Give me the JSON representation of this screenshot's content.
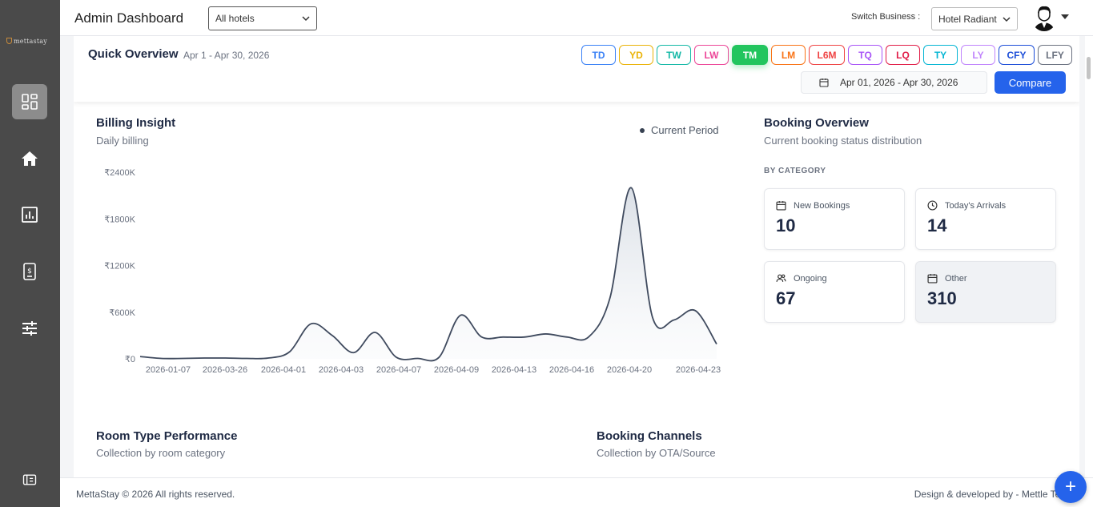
{
  "app": {
    "logo_text": "mettastay"
  },
  "header": {
    "title": "Admin Dashboard",
    "hotel_select_value": "All hotels",
    "switch_label": "Switch Business :",
    "business_value": "Hotel Radiant"
  },
  "overview": {
    "ghost_text": "/ / /                             / / / /",
    "title": "Quick Overview",
    "range": "Apr 1 - Apr 30, 2026",
    "periods": [
      {
        "label": "TD",
        "color": "#3b82f6"
      },
      {
        "label": "YD",
        "color": "#eab308"
      },
      {
        "label": "TW",
        "color": "#14b8a6"
      },
      {
        "label": "LW",
        "color": "#ec4899"
      },
      {
        "label": "TM",
        "color": "#22c55e",
        "active": true
      },
      {
        "label": "LM",
        "color": "#f97316"
      },
      {
        "label": "L6M",
        "color": "#ef4444"
      },
      {
        "label": "TQ",
        "color": "#a855f7"
      },
      {
        "label": "LQ",
        "color": "#e11d48"
      },
      {
        "label": "TY",
        "color": "#06b6d4"
      },
      {
        "label": "LY",
        "color": "#c084fc"
      },
      {
        "label": "CFY",
        "color": "#1d4ed8"
      },
      {
        "label": "LFY",
        "color": "#6b7280"
      }
    ],
    "date_range": "Apr 01, 2026 - Apr 30, 2026",
    "compare_label": "Compare"
  },
  "billing": {
    "title": "Billing Insight",
    "subtitle": "Daily billing",
    "legend": "Current Period"
  },
  "chart_data": {
    "type": "area",
    "title": "Billing Insight",
    "ylim": [
      0,
      2400
    ],
    "y_ticks": [
      "₹0",
      "₹600K",
      "₹1200K",
      "₹1800K",
      "₹2400K"
    ],
    "y_tick_values": [
      0,
      600,
      1200,
      1800,
      2400
    ],
    "x_tick_labels": [
      "2026-01-07",
      "2026-03-26",
      "2026-04-01",
      "2026-04-03",
      "2026-04-07",
      "2026-04-09",
      "2026-04-13",
      "2026-04-16",
      "2026-04-20",
      "2026-04-23"
    ],
    "series": [
      {
        "name": "Current Period",
        "color": "#3f4a5e",
        "values": [
          30,
          5,
          5,
          10,
          10,
          5,
          10,
          90,
          450,
          300,
          80,
          340,
          20,
          5,
          20,
          560,
          280,
          280,
          280,
          320,
          280,
          280,
          780,
          2200,
          530,
          500,
          620,
          190
        ]
      }
    ]
  },
  "booking": {
    "title": "Booking Overview",
    "subtitle": "Current booking status distribution",
    "category_label": "BY CATEGORY",
    "cards": [
      {
        "label": "New Bookings",
        "value": "10",
        "icon": "calendar-icon"
      },
      {
        "label": "Today's Arrivals",
        "value": "14",
        "icon": "clock-icon"
      },
      {
        "label": "Ongoing",
        "value": "67",
        "icon": "users-icon"
      },
      {
        "label": "Other",
        "value": "310",
        "icon": "calendar-icon"
      }
    ]
  },
  "room_type": {
    "title": "Room Type Performance",
    "subtitle": "Collection by room category"
  },
  "channels": {
    "title": "Booking Channels",
    "subtitle": "Collection by OTA/Source"
  },
  "footer": {
    "copyright": "MettaStay © 2026 All rights reserved.",
    "credits": "Design & developed by - Mettle Tech"
  }
}
